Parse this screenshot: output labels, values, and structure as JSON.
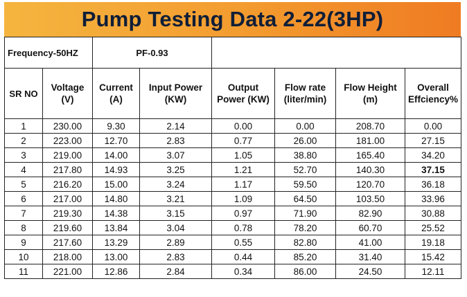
{
  "title": "Pump Testing Data 2-22(3HP)",
  "meta": {
    "frequency": "Frequency-50HZ",
    "pf": "PF-0.93"
  },
  "headers": [
    [
      "SR NO"
    ],
    [
      "Voltage",
      "(V)"
    ],
    [
      "Current",
      "(A)"
    ],
    [
      "Input Power",
      "(KW)"
    ],
    [
      "Output",
      "Power (KW)"
    ],
    [
      "Flow rate",
      "(liter/min)"
    ],
    [
      "Flow Height",
      "(m)"
    ],
    [
      "Overall",
      "Effciency%"
    ]
  ],
  "rows": [
    [
      "1",
      "230.00",
      "9.30",
      "2.14",
      "0.00",
      "0.00",
      "208.70",
      "0.00"
    ],
    [
      "2",
      "223.00",
      "12.70",
      "2.83",
      "0.77",
      "26.00",
      "181.00",
      "27.15"
    ],
    [
      "3",
      "219.00",
      "14.00",
      "3.07",
      "1.05",
      "38.80",
      "165.40",
      "34.20"
    ],
    [
      "4",
      "217.80",
      "14.93",
      "3.25",
      "1.21",
      "52.70",
      "140.30",
      "37.15"
    ],
    [
      "5",
      "216.20",
      "15.00",
      "3.24",
      "1.17",
      "59.50",
      "120.70",
      "36.18"
    ],
    [
      "6",
      "217.00",
      "14.80",
      "3.21",
      "1.09",
      "64.50",
      "103.50",
      "33.96"
    ],
    [
      "7",
      "219.30",
      "14.38",
      "3.15",
      "0.97",
      "71.90",
      "82.90",
      "30.88"
    ],
    [
      "8",
      "219.60",
      "13.84",
      "3.04",
      "0.78",
      "78.20",
      "60.70",
      "25.52"
    ],
    [
      "9",
      "217.60",
      "13.29",
      "2.89",
      "0.55",
      "82.80",
      "41.00",
      "19.18"
    ],
    [
      "10",
      "218.00",
      "13.00",
      "2.83",
      "0.44",
      "85.20",
      "31.40",
      "15.42"
    ],
    [
      "11",
      "221.00",
      "12.86",
      "2.84",
      "0.34",
      "86.00",
      "24.50",
      "12.11"
    ]
  ],
  "highlight": {
    "row": 3,
    "col": 7
  },
  "colors": {
    "title_start": "#f5b53f",
    "title_end": "#ef7b22",
    "title_text": "#0f1e38",
    "border": "#222222"
  }
}
